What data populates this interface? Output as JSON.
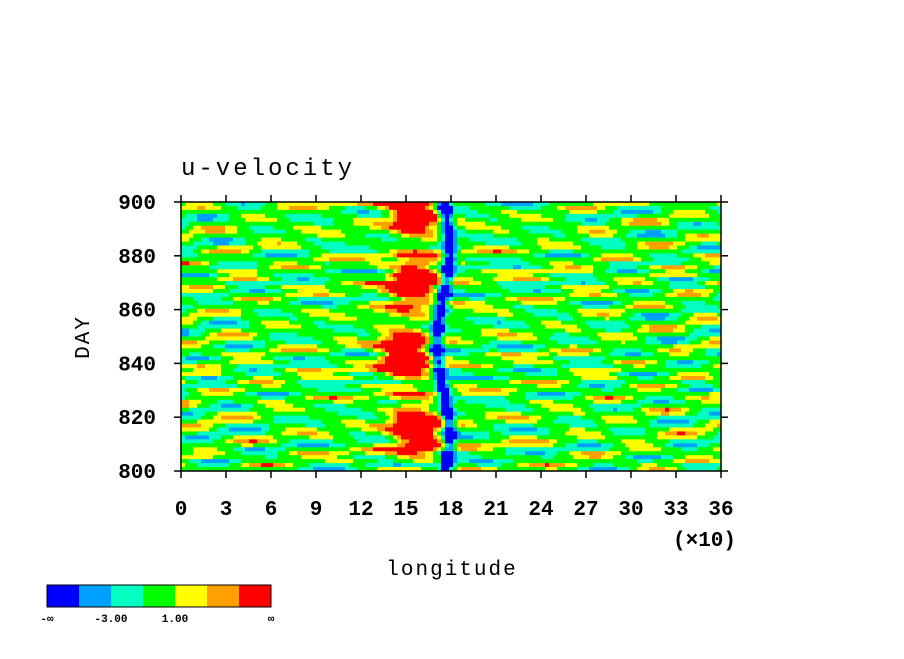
{
  "chart_data": {
    "type": "contour",
    "title": "u-velocity",
    "x_label": "longitude",
    "x_multiplier": "(×10)",
    "y_label": "DAY",
    "xlim": [
      0,
      36
    ],
    "xticks": [
      0,
      3,
      6,
      9,
      12,
      15,
      18,
      21,
      24,
      27,
      30,
      33,
      36
    ],
    "ylim": [
      800,
      900
    ],
    "yticks": [
      800,
      820,
      840,
      860,
      880,
      900
    ],
    "colorbar": {
      "colors": [
        "#0000ff",
        "#00a0ff",
        "#00ffc0",
        "#00ff00",
        "#ffff00",
        "#ffa000",
        "#ff0000"
      ],
      "labels": [
        "-∞",
        null,
        "-3.00",
        null,
        "1.00",
        null,
        null,
        "∞"
      ]
    }
  }
}
